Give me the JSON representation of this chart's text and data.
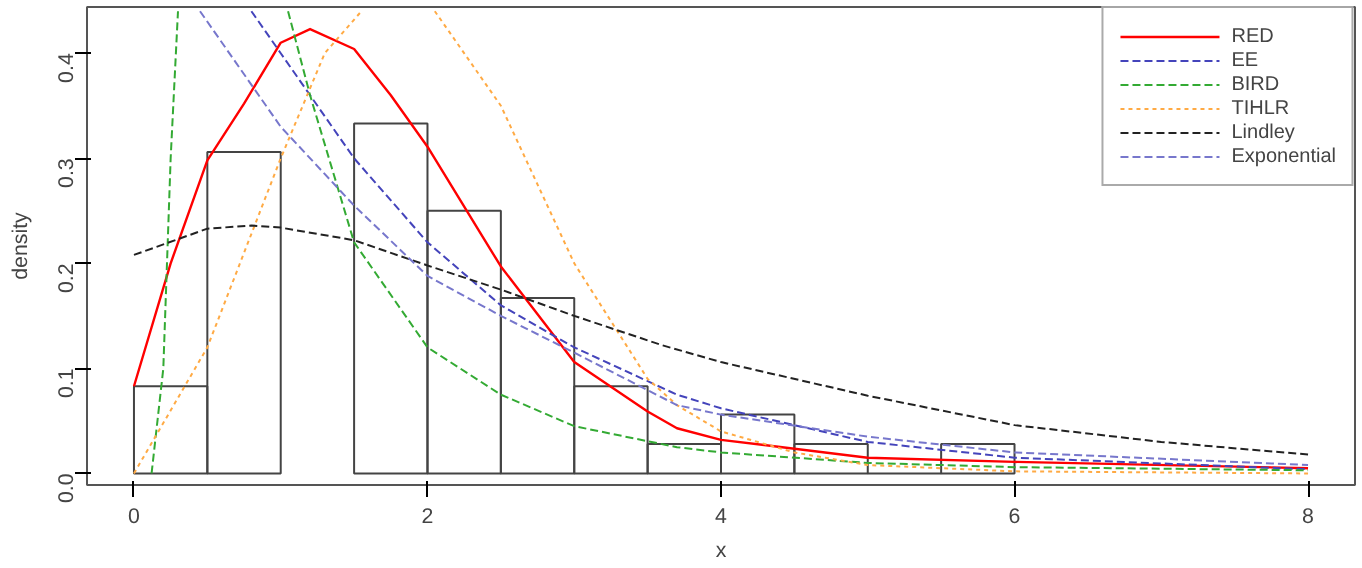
{
  "chart_data": {
    "type": "histogram",
    "xlabel": "x",
    "ylabel": "density",
    "bins": [
      0,
      0.5,
      1,
      1.5,
      2,
      2.5,
      3,
      3.5,
      4,
      4.5,
      5,
      5.5,
      6
    ],
    "values": [
      0.083,
      0.306,
      null,
      0.333,
      0.25,
      0.167,
      0.083,
      0.028,
      0.056,
      0.028,
      0,
      0.028
    ],
    "xlim": [
      -0.32,
      8.32
    ],
    "ylim": [
      -0.011,
      0.444
    ],
    "xticks": [
      0,
      2,
      4,
      6,
      8
    ],
    "yticks": [
      {
        "value": 0,
        "label": "0.0"
      },
      {
        "value": 0.1,
        "label": "0.1"
      },
      {
        "value": 0.2,
        "label": "0.2"
      },
      {
        "value": 0.3,
        "label": "0.3"
      },
      {
        "value": 0.4,
        "label": "0.4"
      }
    ],
    "grid": false,
    "legend": "top right",
    "series": [
      {
        "name": "RED",
        "type": "line",
        "line_style": "solid",
        "color": "#ff0000",
        "x": [
          0,
          0.25,
          0.5,
          0.75,
          1,
          1.2,
          1.5,
          1.75,
          2,
          2.5,
          3,
          3.5,
          3.7,
          4,
          5,
          6,
          8
        ],
        "values": [
          0.083,
          0.2,
          0.298,
          0.352,
          0.41,
          0.423,
          0.404,
          0.36,
          0.311,
          0.197,
          0.106,
          0.059,
          0.043,
          0.032,
          0.015,
          0.011,
          0.005
        ]
      },
      {
        "name": "EE",
        "type": "line",
        "line_style": "dashed",
        "color": "#4444bb",
        "x": [
          0.8,
          1,
          1.5,
          2,
          2.5,
          3,
          3.7,
          4,
          5,
          6,
          8
        ],
        "values": [
          0.44,
          0.4,
          0.3,
          0.22,
          0.16,
          0.12,
          0.075,
          0.062,
          0.03,
          0.015,
          0.004
        ]
      },
      {
        "name": "BIRD",
        "type": "line",
        "line_style": "dashed",
        "color": "#33aa33",
        "x": [
          0.12,
          0.2,
          0.25,
          0.3,
          0.6,
          1.05,
          1.2,
          1.5,
          2,
          2.5,
          3,
          3.7,
          4,
          5,
          6,
          8
        ],
        "values": [
          0,
          0.1,
          0.3,
          0.44,
          null,
          0.44,
          0.36,
          0.22,
          0.12,
          0.075,
          0.045,
          0.025,
          0.02,
          0.01,
          0.006,
          0.003
        ]
      },
      {
        "name": "TIHLR",
        "type": "line",
        "line_style": "dotted",
        "color": "#ffaa44",
        "x": [
          0,
          0.5,
          1,
          1.3,
          1.55,
          1.8,
          2.05,
          2.5,
          3,
          3.5,
          3.7,
          4,
          4.5,
          5,
          6,
          8
        ],
        "values": [
          0,
          0.12,
          0.3,
          0.4,
          0.44,
          null,
          0.44,
          0.35,
          0.2,
          0.09,
          0.065,
          0.04,
          0.02,
          0.008,
          0.002,
          0
        ]
      },
      {
        "name": "Lindley",
        "type": "line",
        "line_style": "dashed",
        "color": "#222222",
        "x": [
          0,
          0.5,
          0.8,
          1,
          1.5,
          2,
          2.5,
          3,
          3.6,
          4,
          5,
          6,
          7,
          8
        ],
        "values": [
          0.208,
          0.233,
          0.236,
          0.234,
          0.222,
          0.198,
          0.175,
          0.15,
          0.122,
          0.106,
          0.074,
          0.046,
          0.03,
          0.018
        ]
      },
      {
        "name": "Exponential",
        "type": "line",
        "line_style": "dashed",
        "color": "#7777cc",
        "x": [
          0.45,
          1,
          1.5,
          2,
          2.5,
          3,
          3.7,
          4,
          5,
          6,
          8
        ],
        "values": [
          0.44,
          0.33,
          0.255,
          0.188,
          0.15,
          0.115,
          0.065,
          0.056,
          0.035,
          0.02,
          0.008
        ]
      }
    ]
  }
}
